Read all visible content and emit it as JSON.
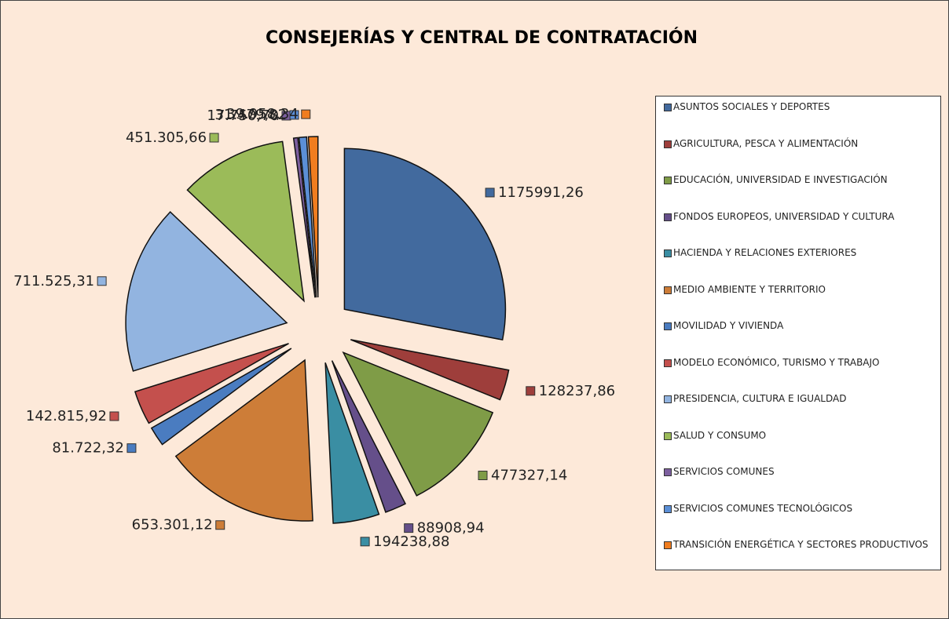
{
  "chart_data": {
    "type": "pie",
    "title": "CONSEJERÍAS Y CENTRAL DE CONTRATACIÓN",
    "categories": [
      "ASUNTOS SOCIALES Y DEPORTES",
      "AGRICULTURA, PESCA Y ALIMENTACIÓN",
      "EDUCACIÓN, UNIVERSIDAD E INVESTIGACIÓN",
      "FONDOS EUROPEOS, UNIVERSIDAD Y CULTURA",
      "HACIENDA Y RELACIONES EXTERIORES",
      "MEDIO AMBIENTE Y TERRITORIO",
      "MOVILIDAD Y VIVIENDA",
      "MODELO ECONÓMICO, TURISMO Y TRABAJO",
      "PRESIDENCIA, CULTURA E IGUALDAD",
      "SALUD Y CONSUMO",
      "SERVICIOS COMUNES",
      "SERVICIOS COMUNES TECNOLÓGICOS",
      "TRANSICIÓN ENERGÉTICA Y SECTORES PRODUCTIVOS"
    ],
    "values": [
      1175991.26,
      128237.86,
      477327.14,
      88908.94,
      194238.88,
      653301.12,
      81722.32,
      142815.92,
      711525.31,
      451305.66,
      17750.7,
      31479.82,
      39958.34
    ],
    "value_labels": [
      "1175991,26",
      "128237,86",
      "477327,14",
      "88908,94",
      "194238,88",
      "653.301,12",
      "81.722,32",
      "142.815,92",
      "711.525,31",
      "451.305,66",
      "17.750,70",
      "31.479,82",
      "39.958,34"
    ],
    "colors": [
      "#426a9e",
      "#9e3e3b",
      "#7f9c47",
      "#654f8a",
      "#3a8ea3",
      "#cd7d38",
      "#4a7cc0",
      "#c4504d",
      "#92b4e0",
      "#9bbb59",
      "#7d5f9f",
      "#5b8fd6",
      "#f07d1f"
    ],
    "legend": "right"
  }
}
